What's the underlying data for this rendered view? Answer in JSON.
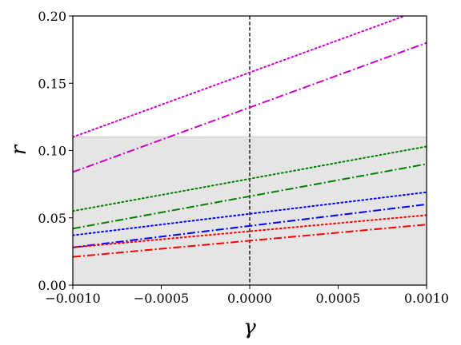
{
  "chart_data": {
    "type": "line",
    "xlabel": "γ",
    "ylabel": "r",
    "xlim": [
      -0.001,
      0.001
    ],
    "ylim": [
      0.0,
      0.2
    ],
    "grid": false,
    "x_ticks": [
      {
        "value": -0.001,
        "label": "−0.0010"
      },
      {
        "value": -0.0005,
        "label": "−0.0005"
      },
      {
        "value": 0.0,
        "label": "0.0000"
      },
      {
        "value": 0.0005,
        "label": "0.0005"
      },
      {
        "value": 0.001,
        "label": "0.0010"
      }
    ],
    "y_ticks": [
      {
        "value": 0.0,
        "label": "0.00"
      },
      {
        "value": 0.05,
        "label": "0.05"
      },
      {
        "value": 0.1,
        "label": "0.10"
      },
      {
        "value": 0.15,
        "label": "0.15"
      },
      {
        "value": 0.2,
        "label": "0.20"
      }
    ],
    "shaded_region": {
      "y_from": 0.0,
      "y_to": 0.11,
      "color": "#e5e5e5"
    },
    "vertical_line": {
      "x": 0.0,
      "color": "#000000",
      "style": "dashed"
    },
    "series": [
      {
        "color": "#cc00cc",
        "style": "dotted",
        "x": [
          -0.001,
          0.001
        ],
        "y": [
          0.11,
          0.206
        ]
      },
      {
        "color": "#cc00cc",
        "style": "dashdot",
        "x": [
          -0.001,
          0.001
        ],
        "y": [
          0.084,
          0.18
        ]
      },
      {
        "color": "#008000",
        "style": "dotted",
        "x": [
          -0.001,
          0.001
        ],
        "y": [
          0.055,
          0.103
        ]
      },
      {
        "color": "#008000",
        "style": "dashdot",
        "x": [
          -0.001,
          0.001
        ],
        "y": [
          0.042,
          0.09
        ]
      },
      {
        "color": "#0000ff",
        "style": "dotted",
        "x": [
          -0.001,
          0.001
        ],
        "y": [
          0.037,
          0.069
        ]
      },
      {
        "color": "#0000ff",
        "style": "dashdot",
        "x": [
          -0.001,
          0.001
        ],
        "y": [
          0.028,
          0.06
        ]
      },
      {
        "color": "#ff0000",
        "style": "dotted",
        "x": [
          -0.001,
          0.001
        ],
        "y": [
          0.028,
          0.052
        ]
      },
      {
        "color": "#ff0000",
        "style": "dashdot",
        "x": [
          -0.001,
          0.001
        ],
        "y": [
          0.021,
          0.045
        ]
      }
    ]
  }
}
